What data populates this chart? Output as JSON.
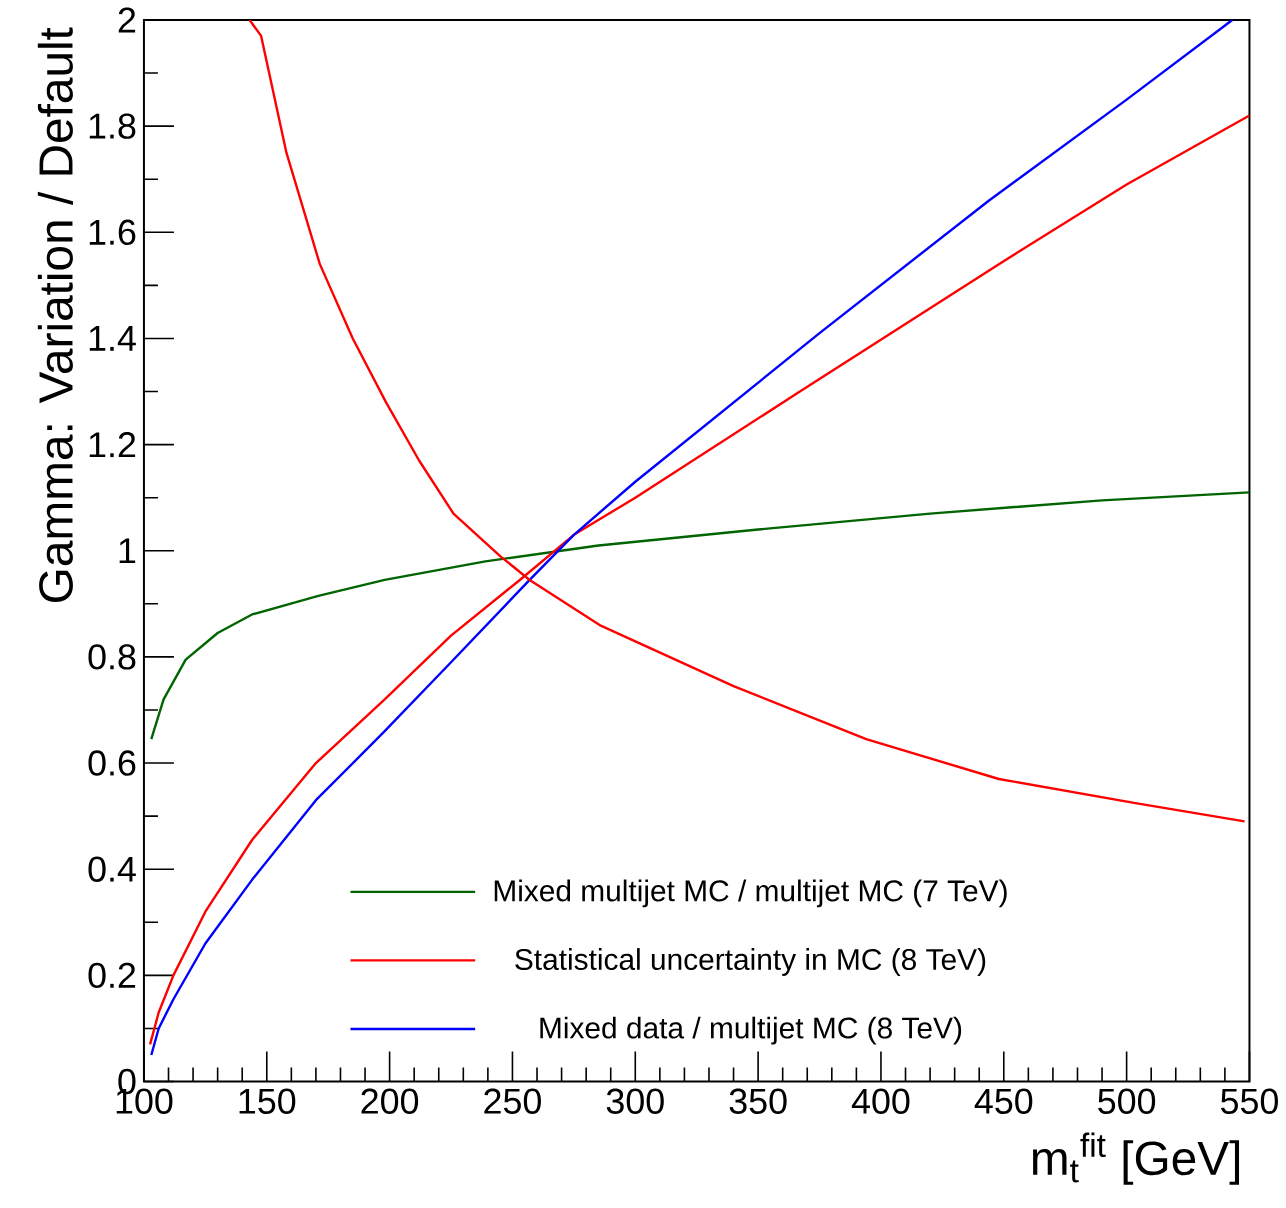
{
  "chart_data": {
    "type": "line",
    "xlabel": "m$_{t}$$^{fit}$ [GeV]",
    "ylabel": "Gamma: Variation / Default",
    "xlim": [
      100,
      550
    ],
    "ylim": [
      0,
      2
    ],
    "xticks": [
      100,
      150,
      200,
      250,
      300,
      350,
      400,
      450,
      500,
      550
    ],
    "yticks": [
      0,
      0.2,
      0.4,
      0.6,
      0.8,
      1,
      1.2,
      1.4,
      1.6,
      1.8,
      2
    ],
    "legend": "bottom",
    "marker": "none",
    "line_style": "solid",
    "series": [
      {
        "name": "Mixed multijet MC / multijet MC (7 TeV)",
        "color": "#006400",
        "x": [
          103,
          104,
          108,
          117,
          130,
          144,
          171,
          198,
          239,
          285,
          350,
          420,
          490,
          550
        ],
        "values": [
          0.645,
          0.66,
          0.72,
          0.795,
          0.845,
          0.88,
          0.915,
          0.945,
          0.98,
          1.01,
          1.04,
          1.07,
          1.095,
          1.11
        ]
      },
      {
        "name": "Statistical uncertainty in MC (8 TeV)",
        "color": "#ff0000",
        "x": [
          102.5,
          106,
          112,
          125,
          144,
          170,
          198,
          225,
          253,
          275,
          300,
          367,
          448,
          500,
          550
        ],
        "values": [
          0.07,
          0.13,
          0.2,
          0.32,
          0.455,
          0.6,
          0.72,
          0.84,
          0.945,
          1.03,
          1.1,
          1.3,
          1.54,
          1.69,
          1.82
        ]
      },
      {
        "name": "Mixed data / multijet MC (8 TeV)",
        "color": "#0000ff",
        "x": [
          103,
          106,
          112,
          125,
          144,
          170,
          198,
          225,
          257,
          275,
          300,
          375,
          444,
          500,
          543
        ],
        "values": [
          0.05,
          0.1,
          0.155,
          0.26,
          0.38,
          0.53,
          0.66,
          0.79,
          0.945,
          1.03,
          1.13,
          1.41,
          1.66,
          1.85,
          2.0
        ]
      },
      {
        "color": "#ff0000",
        "x": [
          143,
          147.7,
          158,
          171.6,
          185,
          198.5,
          212,
          226,
          245,
          257,
          285.5,
          340,
          394,
          448,
          503,
          548
        ],
        "values": [
          2.0,
          1.97,
          1.75,
          1.54,
          1.4,
          1.28,
          1.17,
          1.07,
          0.99,
          0.945,
          0.86,
          0.745,
          0.645,
          0.57,
          0.525,
          0.49
        ]
      }
    ]
  }
}
